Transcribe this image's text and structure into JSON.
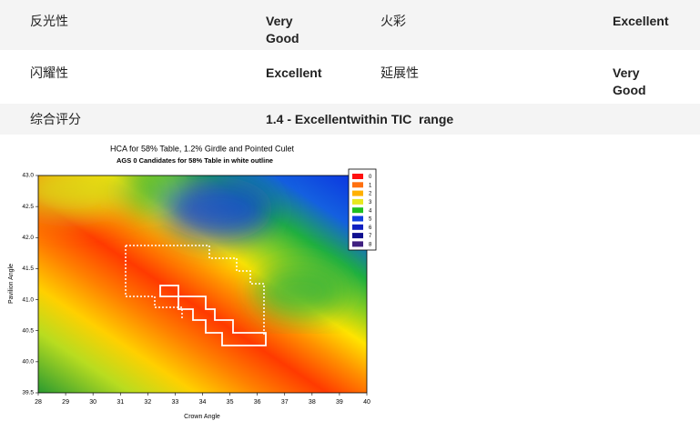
{
  "table": {
    "rows": [
      [
        "反光性",
        "Very Good",
        "火彩",
        "Excellent"
      ],
      [
        "闪耀性",
        "Excellent",
        "延展性",
        "Very Good"
      ],
      [
        "综合评分",
        "1.4 - Excellentwithin TIC  range"
      ]
    ]
  },
  "chart": {
    "title": "HCA for 58% Table, 1.2% Girdle and Pointed Culet",
    "subtitle": "AGS 0 Candidates for 58% Table in white outline",
    "x_label": "Crown Angle",
    "y_label": "Pavilion Angle",
    "xlim": [
      28,
      40
    ],
    "ylim": [
      39.5,
      43
    ],
    "xticks": [
      28,
      29,
      30,
      31,
      32,
      33,
      34,
      35,
      36,
      37,
      38,
      39,
      40
    ],
    "yticks": [
      39.5,
      {
        "value": 40,
        "label": "40.0"
      },
      40.5,
      {
        "value": 41,
        "label": "41.0"
      },
      41.5,
      {
        "value": 42,
        "label": "42.0"
      },
      42.5,
      {
        "value": 43,
        "label": "43.0"
      }
    ],
    "legend": [
      {
        "name": "0",
        "color": "#ff1010"
      },
      {
        "name": "1",
        "color": "#ff7010"
      },
      {
        "name": "2",
        "color": "#ffb000"
      },
      {
        "name": "3",
        "color": "#e8e820"
      },
      {
        "name": "4",
        "color": "#20c020"
      },
      {
        "name": "5",
        "color": "#1040e0"
      },
      {
        "name": "6",
        "color": "#1020c0"
      },
      {
        "name": "7",
        "color": "#101090"
      },
      {
        "name": "8",
        "color": "#402080"
      }
    ]
  }
}
